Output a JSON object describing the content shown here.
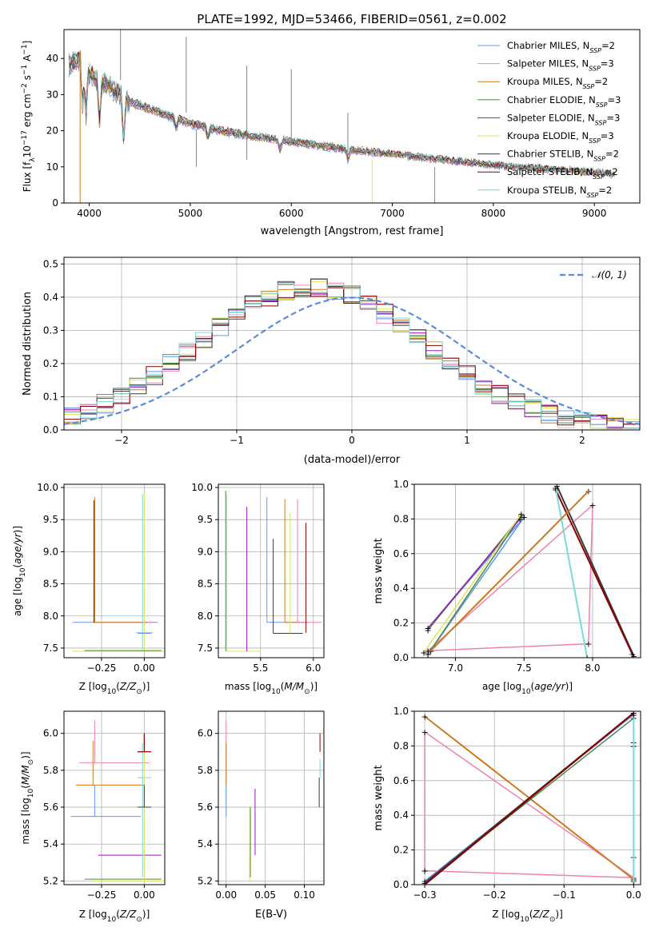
{
  "figure": {
    "title": "PLATE=1992, MJD=53466, FIBERID=0561, z=0.002"
  },
  "models": [
    {
      "name": "Chabrier MILES, N_SSP=2",
      "color": "#6495ed"
    },
    {
      "name": "Salpeter MILES, N_SSP=3",
      "color": "#ee82b4"
    },
    {
      "name": "Kroupa MILES, N_SSP=2",
      "color": "#cd7a1e"
    },
    {
      "name": "Chabrier ELODIE, N_SSP=3",
      "color": "#4a8a4a"
    },
    {
      "name": "Salpeter ELODIE, N_SSP=3",
      "color": "#9a16c0"
    },
    {
      "name": "Kroupa ELODIE, N_SSP=3",
      "color": "#dde45a"
    },
    {
      "name": "Chabrier STELIB, N_SSP=2",
      "color": "#3a3a3a"
    },
    {
      "name": "Salpeter STELIB, N_SSP=2",
      "color": "#8b0000"
    },
    {
      "name": "Kroupa STELIB, N_SSP=2",
      "color": "#7ad9d9"
    }
  ],
  "chart_data": [
    {
      "id": "spectrum",
      "type": "line",
      "xlabel": "wavelength [Angstrom, rest frame]",
      "ylabel": "Flux [f_λ 10^-17 erg cm^-2 s^-1 A^-1]",
      "xlim": [
        3750,
        9450
      ],
      "ylim": [
        0,
        48
      ],
      "xticks": [
        4000,
        5000,
        6000,
        7000,
        8000,
        9000
      ],
      "yticks": [
        0,
        10,
        20,
        30,
        40
      ],
      "grid": false,
      "legend": "top-right",
      "series_shape": {
        "x": [
          3800,
          3900,
          4000,
          4200,
          4400,
          4600,
          4800,
          5000,
          5300,
          5600,
          6000,
          6500,
          7000,
          7500,
          8000,
          8500,
          9000,
          9200
        ],
        "y": [
          38,
          40,
          36,
          32,
          28,
          26,
          24,
          22,
          20,
          18.5,
          17,
          15,
          13.5,
          12,
          10.5,
          9.5,
          8.5,
          8
        ]
      }
    },
    {
      "id": "residuals",
      "type": "line",
      "xlabel": "(data-model)/error",
      "ylabel": "Normed distribution",
      "xlim": [
        -2.5,
        2.5
      ],
      "ylim": [
        0,
        0.52
      ],
      "xticks": [
        -2,
        -1,
        0,
        1,
        2
      ],
      "yticks": [
        0.0,
        0.1,
        0.2,
        0.3,
        0.4,
        0.5
      ],
      "grid": true,
      "legend": "top-right",
      "legend_label": "𝒩(0, 1)",
      "reference": {
        "mu": 0,
        "sigma": 1,
        "color": "#5b8bd9"
      }
    },
    {
      "id": "age-vs-z",
      "type": "scatter",
      "xlabel": "Z [log10(Z/Z⊙)]",
      "ylabel": "age  [log10(age/yr)]",
      "xlim": [
        -0.47,
        0.12
      ],
      "ylim": [
        7.35,
        10.05
      ],
      "xticks": [
        -0.25,
        0.0
      ],
      "yticks": [
        7.5,
        8.0,
        8.5,
        9.0,
        9.5,
        10.0
      ],
      "grid": true
    },
    {
      "id": "age-vs-mass",
      "type": "scatter",
      "xlabel": "mass [log10(M/M⊙)]",
      "ylabel": "",
      "xlim": [
        5.1,
        6.1
      ],
      "ylim": [
        7.35,
        10.05
      ],
      "xticks": [
        5.5,
        6.0
      ],
      "yticks": [
        7.5,
        8.0,
        8.5,
        9.0,
        9.5,
        10.0
      ],
      "grid": true
    },
    {
      "id": "weight-vs-age",
      "type": "line",
      "xlabel": "age  [log10(age/yr)]",
      "ylabel": "mass weight",
      "xlim": [
        6.7,
        8.35
      ],
      "ylim": [
        0,
        1.0
      ],
      "xticks": [
        7.0,
        7.5,
        8.0
      ],
      "yticks": [
        0.0,
        0.2,
        0.4,
        0.6,
        0.8,
        1.0
      ],
      "grid": true
    },
    {
      "id": "mass-vs-z",
      "type": "scatter",
      "xlabel": "Z [log10(Z/Z⊙)]",
      "ylabel": "mass [log10(M/M⊙)]",
      "xlim": [
        -0.47,
        0.12
      ],
      "ylim": [
        5.18,
        6.12
      ],
      "xticks": [
        -0.25,
        0.0
      ],
      "yticks": [
        5.2,
        5.4,
        5.6,
        5.8,
        6.0
      ],
      "grid": true
    },
    {
      "id": "mass-vs-ebv",
      "type": "scatter",
      "xlabel": "E(B-V)",
      "ylabel": "",
      "xlim": [
        -0.01,
        0.125
      ],
      "ylim": [
        5.18,
        6.12
      ],
      "xticks": [
        0.0,
        0.05,
        0.1
      ],
      "yticks": [
        5.2,
        5.4,
        5.6,
        5.8,
        6.0
      ],
      "grid": true
    },
    {
      "id": "weight-vs-z",
      "type": "line",
      "xlabel": "Z [log10(Z/Z⊙)]",
      "ylabel": "mass weight",
      "xlim": [
        -0.315,
        0.01
      ],
      "ylim": [
        0,
        1.0
      ],
      "xticks": [
        -0.3,
        -0.2,
        -0.1,
        0.0
      ],
      "yticks": [
        0.0,
        0.2,
        0.4,
        0.6,
        0.8,
        1.0
      ],
      "grid": true
    }
  ]
}
